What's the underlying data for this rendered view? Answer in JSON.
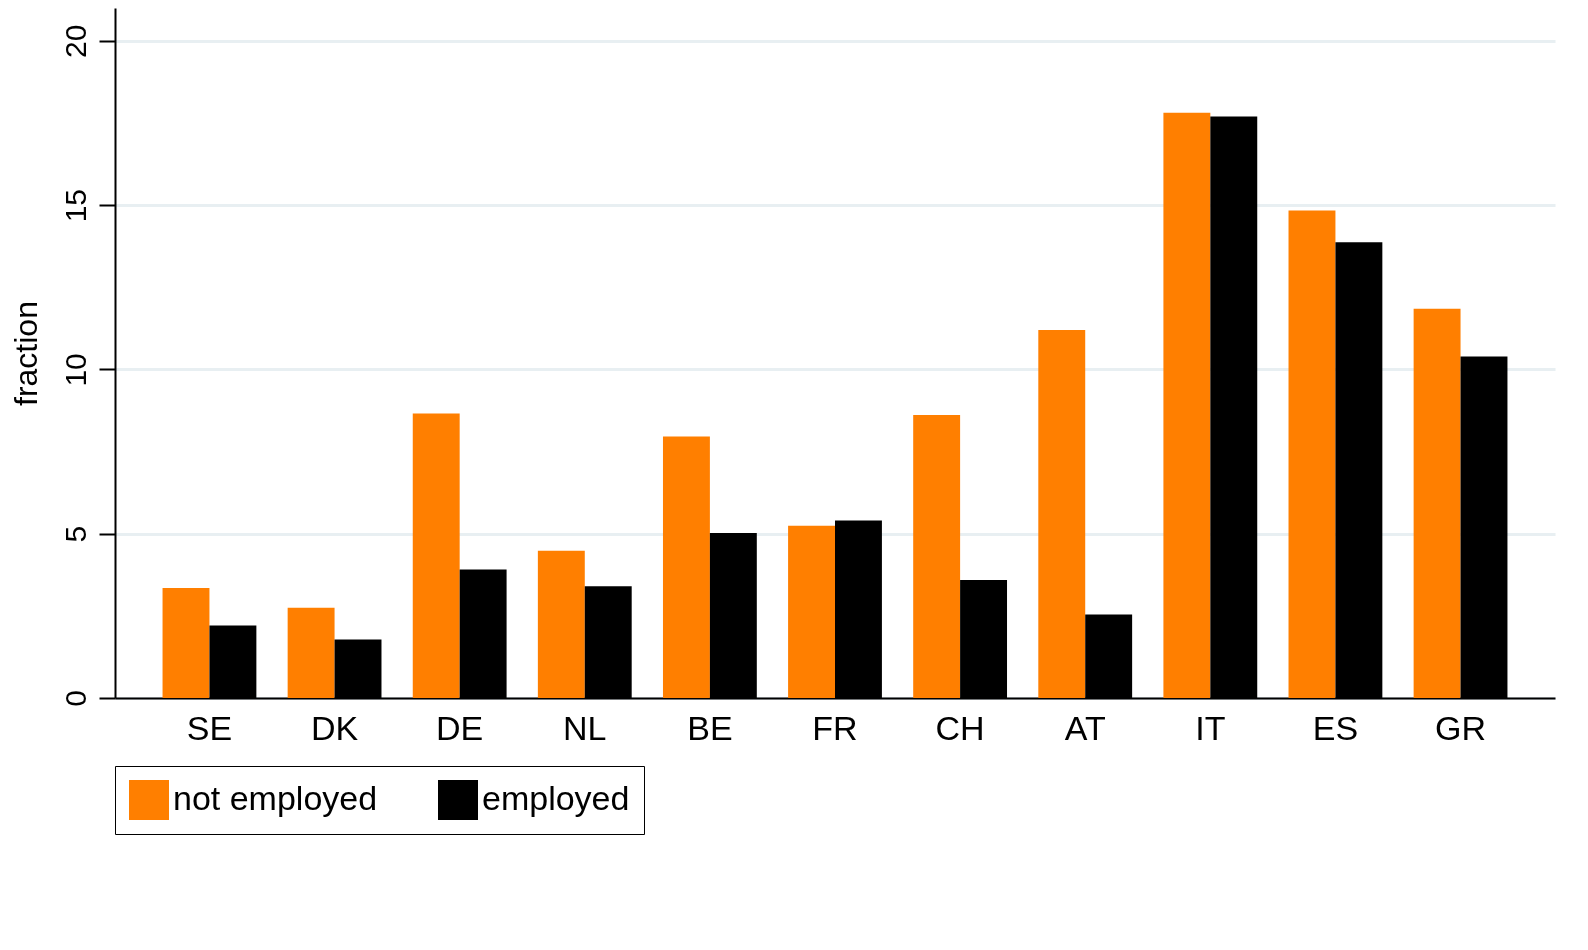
{
  "chart_data": {
    "type": "bar",
    "ylabel": "fraction",
    "categories": [
      "SE",
      "DK",
      "DE",
      "NL",
      "BE",
      "FR",
      "CH",
      "AT",
      "IT",
      "ES",
      "GR"
    ],
    "series": [
      {
        "name": "not employed",
        "color": "#ff7f00",
        "values": [
          3.35,
          2.75,
          8.66,
          4.48,
          7.96,
          5.24,
          8.61,
          11.2,
          17.81,
          14.84,
          11.85
        ]
      },
      {
        "name": "employed",
        "color": "#000000",
        "values": [
          2.21,
          1.78,
          3.91,
          3.4,
          5.02,
          5.4,
          3.59,
          2.54,
          17.7,
          13.87,
          10.39
        ]
      }
    ],
    "ylim": [
      0,
      21
    ],
    "yticks": [
      0,
      5,
      10,
      15,
      20
    ],
    "grid": "y",
    "legend": "bottom"
  }
}
